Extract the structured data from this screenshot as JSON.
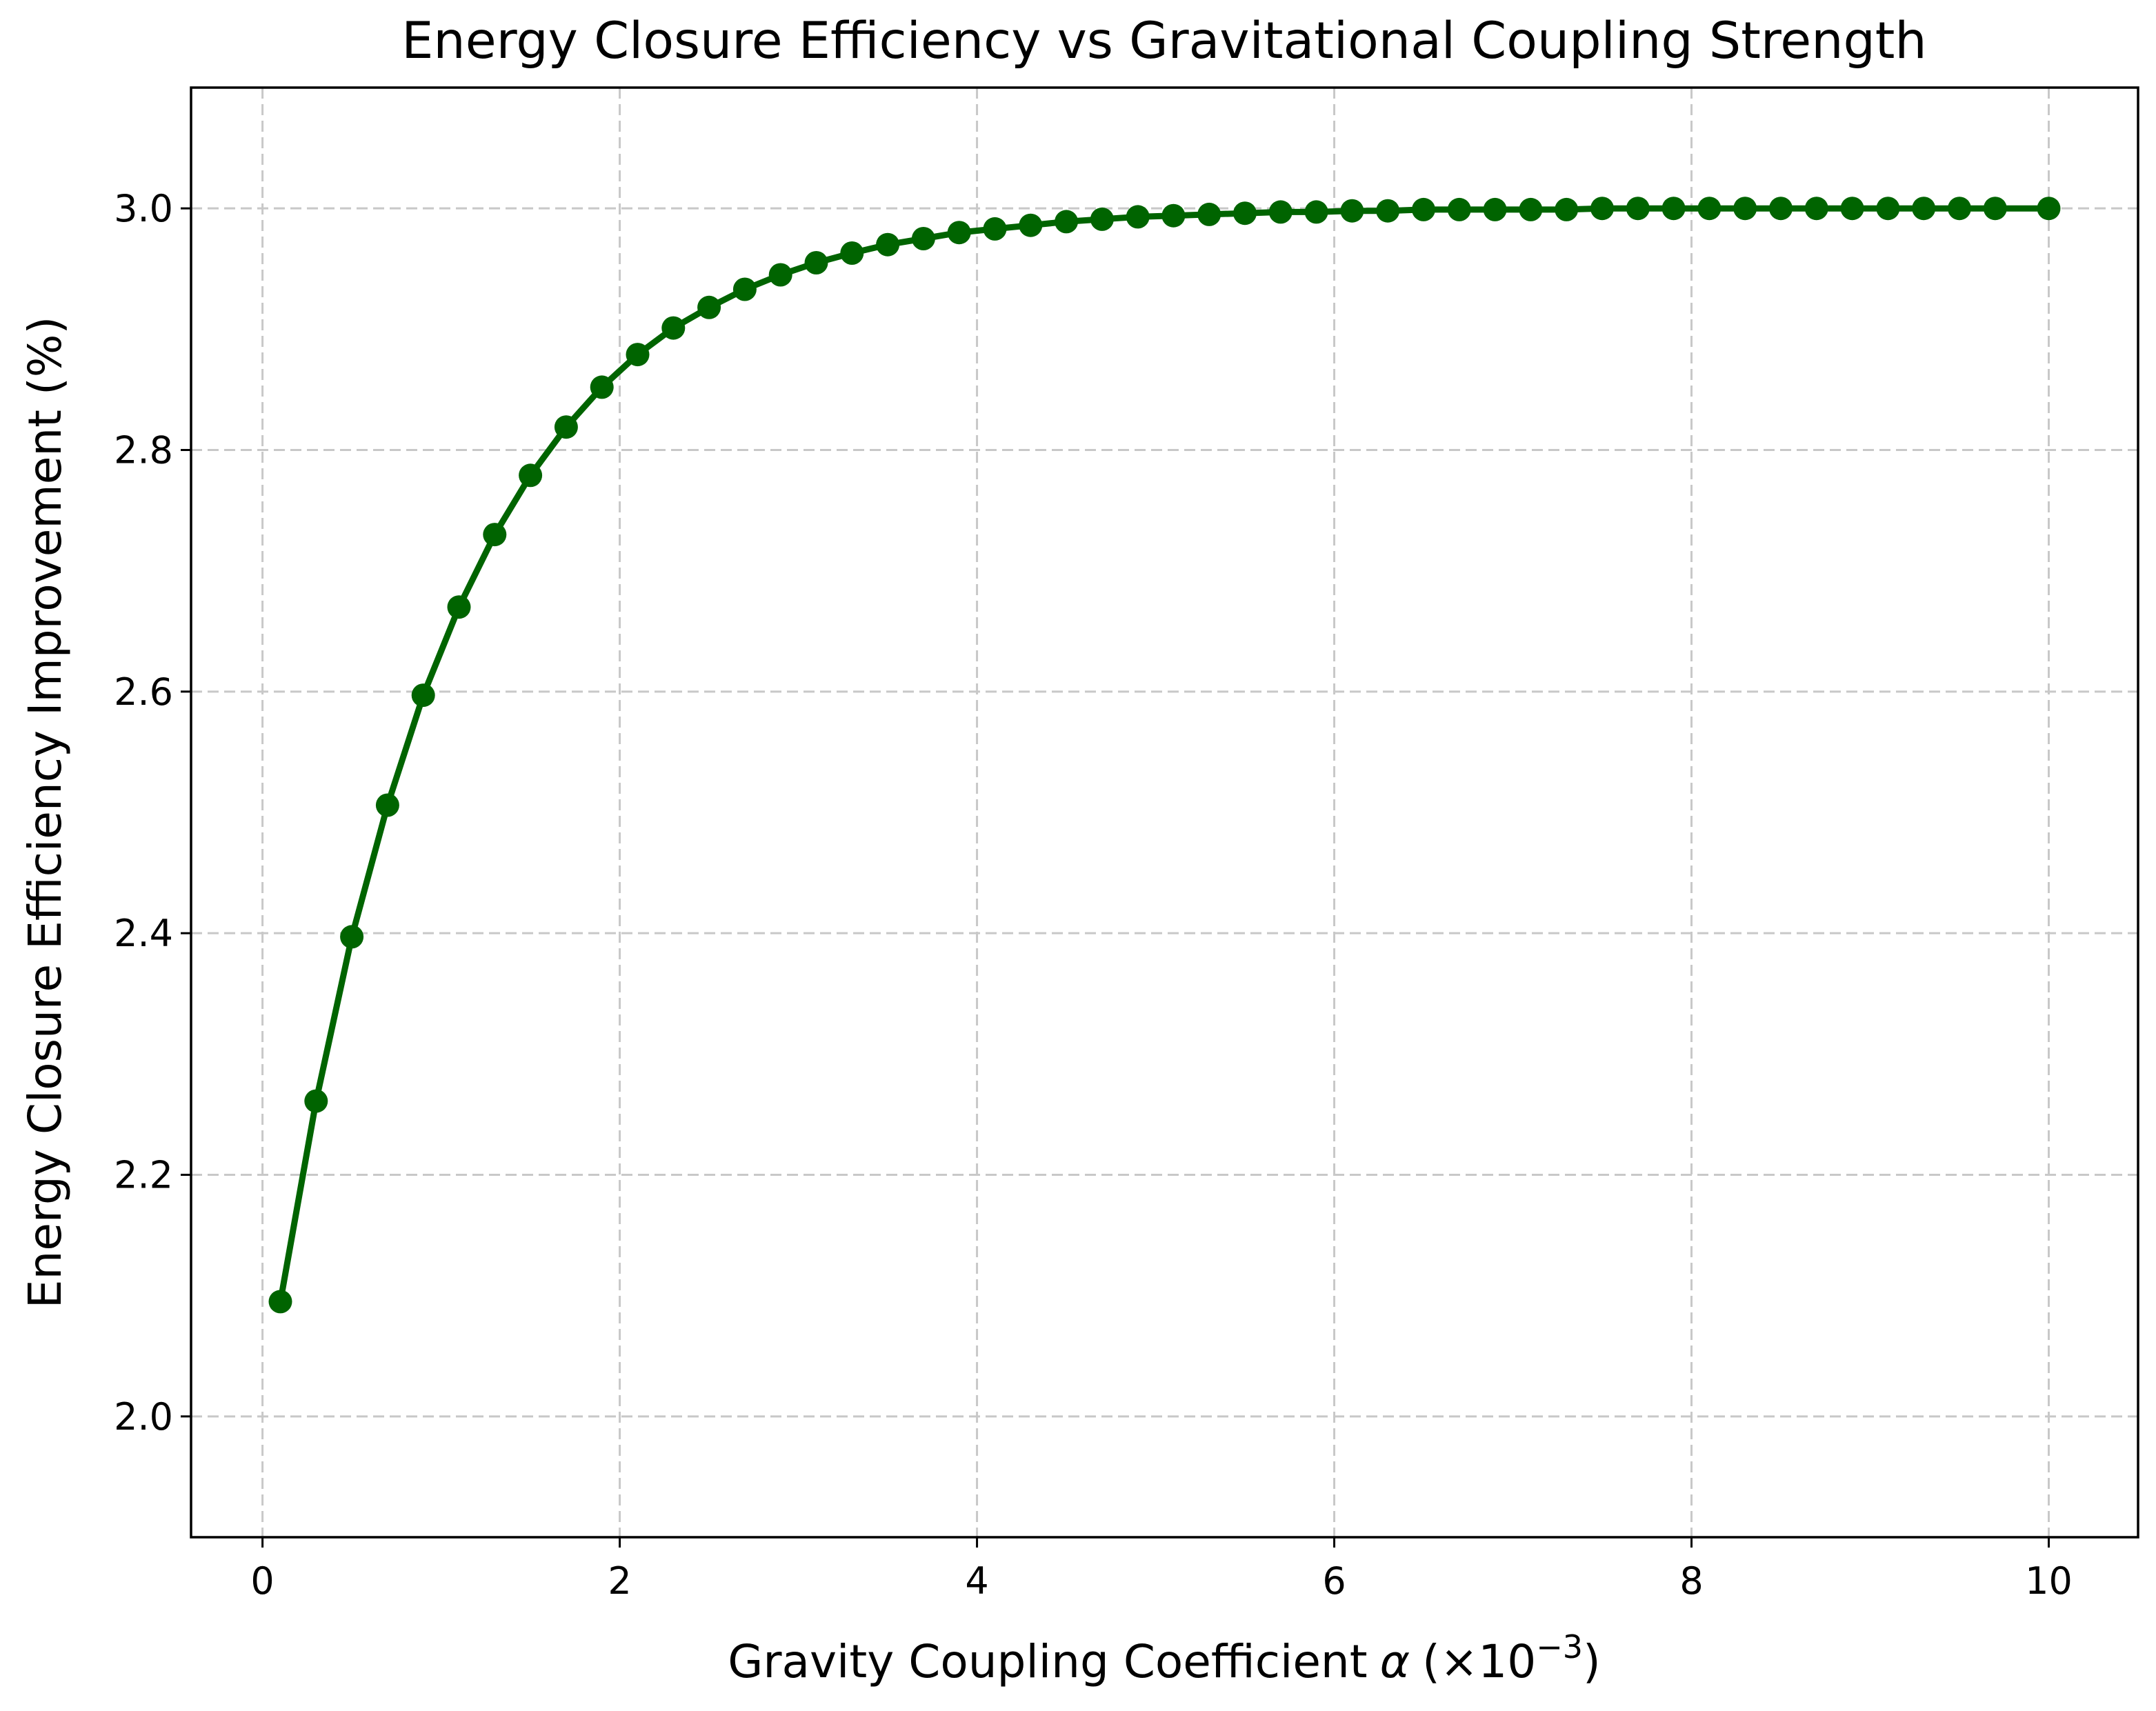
{
  "chart_data": {
    "type": "line",
    "title": "Energy Closure Efficiency vs Gravitational Coupling Strength",
    "xlabel": "Gravity Coupling Coefficient",
    "xlabel_symbol": "α",
    "xlabel_unit_prefix": "(×10",
    "xlabel_unit_exponent": "−3",
    "xlabel_unit_suffix": ")",
    "ylabel": "Energy Closure Efficiency Improvement (%)",
    "xlim": [
      -0.4,
      10.5
    ],
    "ylim": [
      1.9,
      3.1
    ],
    "xticks": [
      0,
      2,
      4,
      6,
      8,
      10
    ],
    "xtick_labels": [
      "0",
      "2",
      "4",
      "6",
      "8",
      "10"
    ],
    "yticks": [
      2.0,
      2.2,
      2.4,
      2.6,
      2.8,
      3.0
    ],
    "ytick_labels": [
      "2.0",
      "2.2",
      "2.4",
      "2.6",
      "2.8",
      "3.0"
    ],
    "grid": true,
    "legend": false,
    "series": [
      {
        "color": "#006400",
        "marker": "circle",
        "x": [
          0.1,
          0.3,
          0.5,
          0.7,
          0.9,
          1.1,
          1.3,
          1.5,
          1.7,
          1.9,
          2.1,
          2.3,
          2.5,
          2.7,
          2.9,
          3.1,
          3.3,
          3.5,
          3.7,
          3.9,
          4.1,
          4.3,
          4.5,
          4.7,
          4.9,
          5.1,
          5.3,
          5.5,
          5.7,
          5.9,
          6.1,
          6.3,
          6.5,
          6.7,
          6.9,
          7.1,
          7.3,
          7.5,
          7.7,
          7.9,
          8.1,
          8.3,
          8.5,
          8.7,
          8.9,
          9.1,
          9.3,
          9.5,
          9.7,
          10.0
        ],
        "y": [
          2.095,
          2.261,
          2.397,
          2.506,
          2.597,
          2.67,
          2.73,
          2.779,
          2.819,
          2.852,
          2.879,
          2.901,
          2.918,
          2.933,
          2.945,
          2.955,
          2.963,
          2.97,
          2.975,
          2.98,
          2.983,
          2.986,
          2.989,
          2.991,
          2.993,
          2.994,
          2.995,
          2.996,
          2.997,
          2.997,
          2.998,
          2.998,
          2.999,
          2.999,
          2.999,
          2.999,
          2.999,
          3.0,
          3.0,
          3.0,
          3.0,
          3.0,
          3.0,
          3.0,
          3.0,
          3.0,
          3.0,
          3.0,
          3.0,
          3.0
        ]
      }
    ]
  }
}
